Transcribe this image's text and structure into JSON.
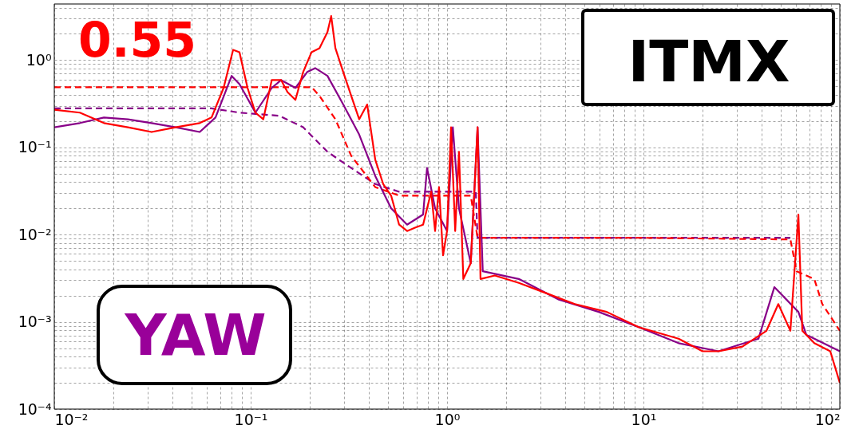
{
  "chart_data": {
    "type": "line",
    "annotations": [
      "0.55",
      "ITMX",
      "YAW"
    ],
    "xlim": [
      0.01,
      100
    ],
    "ylim": [
      0.0001,
      4.4
    ],
    "xticks": [
      {
        "value": 0.01,
        "label": "10⁻²"
      },
      {
        "value": 0.1,
        "label": "10⁻¹"
      },
      {
        "value": 1,
        "label": "10⁰"
      },
      {
        "value": 10,
        "label": "10¹"
      },
      {
        "value": 100,
        "label": "10²"
      }
    ],
    "yticks": [
      {
        "value": 0.0001,
        "label": "10⁻⁴"
      },
      {
        "value": 0.001,
        "label": "10⁻³"
      },
      {
        "value": 0.01,
        "label": "10⁻²"
      },
      {
        "value": 0.1,
        "label": "10⁻¹"
      },
      {
        "value": 1,
        "label": "10⁰"
      }
    ],
    "log": "xy",
    "grid": true,
    "series": [
      {
        "color": "#880088",
        "line_style": "dashed",
        "x": [
          0.01,
          0.0632,
          0.0877,
          0.14,
          0.185,
          0.246,
          0.325,
          0.431,
          0.57,
          0.91,
          1.4,
          1.43,
          1.48,
          9.46,
          56.0
        ],
        "values": [
          0.28,
          0.28,
          0.25,
          0.23,
          0.17,
          0.089,
          0.058,
          0.038,
          0.031,
          0.031,
          0.031,
          0.0092,
          0.0092,
          0.0092,
          0.0092
        ]
      },
      {
        "color": "#ff0000",
        "line_style": "dashed",
        "x": [
          0.01,
          0.204,
          0.224,
          0.27,
          0.325,
          0.431,
          0.57,
          0.755,
          1.32,
          1.43,
          1.48,
          9.46,
          56.0,
          60.3,
          74.1,
          81.4,
          100
        ],
        "values": [
          0.49,
          0.49,
          0.39,
          0.21,
          0.08,
          0.035,
          0.028,
          0.028,
          0.028,
          0.0092,
          0.0092,
          0.0092,
          0.0088,
          0.0038,
          0.0031,
          0.0016,
          0.00079
        ]
      },
      {
        "color": "#880088",
        "line_style": "solid",
        "x": [
          0.01,
          0.0135,
          0.0179,
          0.0237,
          0.0313,
          0.0415,
          0.055,
          0.0662,
          0.08,
          0.0877,
          0.1057,
          0.128,
          0.143,
          0.169,
          0.194,
          0.213,
          0.246,
          0.296,
          0.357,
          0.431,
          0.519,
          0.626,
          0.755,
          0.791,
          0.869,
          1.0,
          1.07,
          1.15,
          1.32,
          1.43,
          1.52,
          2.32,
          3.71,
          5.92,
          9.46,
          15.1,
          24.1,
          38.5,
          46.4,
          61.5,
          67.5,
          100
        ],
        "values": [
          0.17,
          0.19,
          0.22,
          0.21,
          0.19,
          0.17,
          0.15,
          0.22,
          0.66,
          0.53,
          0.25,
          0.48,
          0.59,
          0.48,
          0.73,
          0.81,
          0.66,
          0.31,
          0.14,
          0.047,
          0.02,
          0.013,
          0.017,
          0.058,
          0.02,
          0.011,
          0.17,
          0.02,
          0.0047,
          0.17,
          0.0038,
          0.0031,
          0.0018,
          0.0013,
          0.00087,
          0.00057,
          0.00046,
          0.00064,
          0.0025,
          0.0013,
          0.00071,
          0.00046
        ]
      },
      {
        "color": "#ff0000",
        "line_style": "solid",
        "x": [
          0.01,
          0.0135,
          0.0179,
          0.0237,
          0.0313,
          0.0415,
          0.055,
          0.0632,
          0.0728,
          0.0814,
          0.0877,
          0.0964,
          0.1057,
          0.116,
          0.128,
          0.143,
          0.154,
          0.169,
          0.185,
          0.204,
          0.224,
          0.246,
          0.257,
          0.27,
          0.296,
          0.325,
          0.357,
          0.392,
          0.431,
          0.473,
          0.519,
          0.57,
          0.626,
          0.687,
          0.755,
          0.83,
          0.869,
          0.91,
          0.954,
          1.0,
          1.048,
          1.1,
          1.15,
          1.21,
          1.32,
          1.43,
          1.48,
          1.75,
          2.32,
          3.08,
          4.47,
          6.5,
          9.46,
          15.1,
          20.0,
          24.1,
          31.9,
          42.3,
          48.6,
          56.0,
          61.5,
          64.4,
          74.1,
          89.4,
          100
        ],
        "values": [
          0.27,
          0.25,
          0.19,
          0.17,
          0.15,
          0.17,
          0.19,
          0.22,
          0.48,
          1.31,
          1.23,
          0.48,
          0.25,
          0.21,
          0.59,
          0.59,
          0.43,
          0.35,
          0.73,
          1.23,
          1.37,
          2.1,
          3.2,
          1.37,
          0.73,
          0.39,
          0.21,
          0.31,
          0.072,
          0.038,
          0.028,
          0.013,
          0.011,
          0.012,
          0.013,
          0.031,
          0.011,
          0.035,
          0.0058,
          0.011,
          0.17,
          0.011,
          0.089,
          0.0031,
          0.0047,
          0.17,
          0.0031,
          0.0034,
          0.0028,
          0.0022,
          0.0016,
          0.0013,
          0.00087,
          0.00064,
          0.00046,
          0.00046,
          0.00052,
          0.00079,
          0.0016,
          0.00079,
          0.017,
          0.00079,
          0.00057,
          0.00046,
          0.0002
        ]
      }
    ]
  }
}
